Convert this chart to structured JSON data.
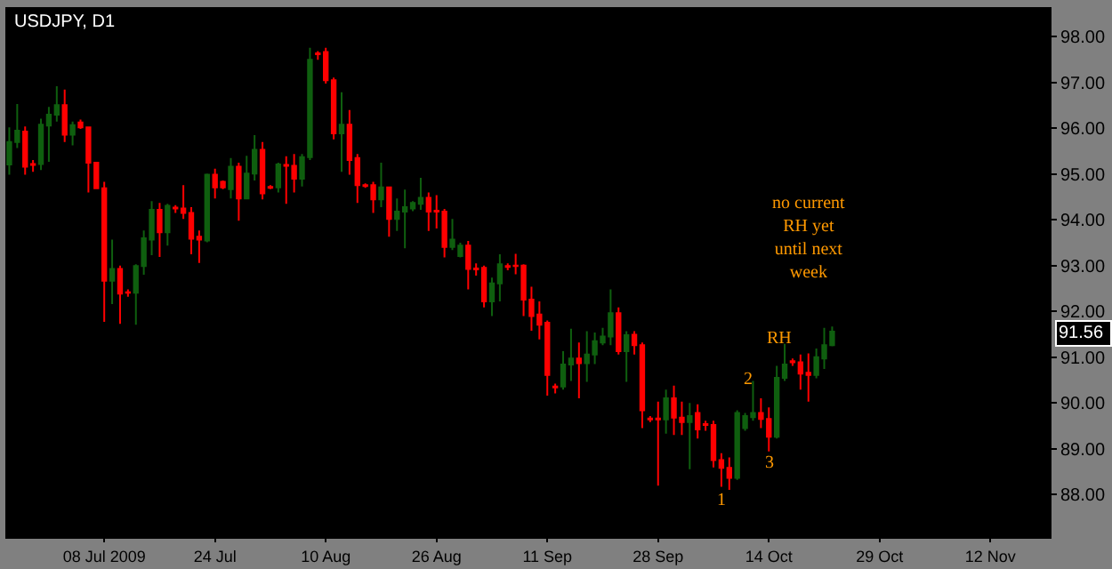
{
  "chart_data": {
    "type": "candlestick",
    "title": "USDJPY, D1",
    "categories": [
      null,
      null,
      null,
      null,
      null,
      null,
      null,
      null,
      null,
      null,
      null,
      null,
      "08 Jul 2009",
      null,
      null,
      null,
      null,
      null,
      null,
      null,
      null,
      null,
      null,
      null,
      null,
      null,
      "24 Jul",
      null,
      null,
      null,
      null,
      null,
      null,
      null,
      null,
      null,
      null,
      null,
      null,
      null,
      "10 Aug",
      null,
      null,
      null,
      null,
      null,
      null,
      null,
      null,
      null,
      null,
      null,
      null,
      null,
      "26 Aug",
      null,
      null,
      null,
      null,
      null,
      null,
      null,
      null,
      null,
      null,
      null,
      null,
      null,
      "11 Sep",
      null,
      null,
      null,
      null,
      null,
      null,
      null,
      null,
      null,
      null,
      null,
      null,
      null,
      "28 Sep",
      null,
      null,
      null,
      null,
      null,
      null,
      null,
      null,
      null,
      null,
      null,
      null,
      null,
      "14 Oct",
      null,
      null,
      null,
      null,
      null,
      null,
      null,
      null,
      null,
      null,
      null,
      null,
      null,
      "29 Oct",
      null,
      null,
      null,
      null,
      null,
      null,
      null,
      null,
      null,
      null,
      null,
      null,
      null,
      "12 Nov",
      null,
      null,
      null,
      null,
      null,
      null,
      null
    ],
    "ohlc": [
      [
        95.21,
        96.02,
        94.99,
        95.7
      ],
      [
        95.7,
        96.53,
        95.57,
        95.95
      ],
      [
        95.93,
        96.04,
        94.99,
        95.16
      ],
      [
        95.22,
        95.31,
        95.05,
        95.2
      ],
      [
        95.22,
        96.21,
        95.09,
        96.08
      ],
      [
        96.06,
        96.47,
        95.27,
        96.3
      ],
      [
        96.3,
        96.92,
        96.15,
        96.51
      ],
      [
        96.51,
        96.85,
        95.7,
        95.86
      ],
      [
        95.86,
        96.15,
        95.63,
        96.07
      ],
      [
        96.13,
        96.19,
        95.99,
        96.02
      ],
      [
        96.02,
        96.04,
        94.6,
        95.25
      ],
      [
        95.25,
        95.27,
        94.67,
        94.69
      ],
      [
        94.69,
        94.83,
        91.77,
        92.67
      ],
      [
        92.67,
        93.57,
        92.16,
        92.93
      ],
      [
        92.93,
        93.0,
        91.73,
        92.39
      ],
      [
        92.42,
        92.48,
        92.32,
        92.41
      ],
      [
        92.41,
        93.03,
        91.71,
        92.99
      ],
      [
        92.99,
        93.77,
        92.8,
        93.6
      ],
      [
        93.57,
        94.41,
        93.23,
        94.22
      ],
      [
        94.22,
        94.37,
        93.19,
        93.73
      ],
      [
        93.73,
        94.35,
        93.44,
        94.31
      ],
      [
        94.27,
        94.32,
        94.15,
        94.25
      ],
      [
        94.25,
        94.76,
        94.02,
        94.15
      ],
      [
        94.15,
        94.28,
        93.25,
        93.59
      ],
      [
        93.63,
        93.77,
        93.06,
        93.57
      ],
      [
        93.55,
        95.01,
        93.51,
        94.99
      ],
      [
        94.99,
        95.12,
        94.47,
        94.71
      ],
      [
        94.83,
        94.86,
        94.67,
        94.71
      ],
      [
        94.67,
        95.35,
        94.47,
        95.16
      ],
      [
        95.16,
        95.25,
        93.98,
        94.47
      ],
      [
        94.47,
        95.4,
        94.45,
        95.01
      ],
      [
        95.01,
        95.85,
        94.86,
        95.53
      ],
      [
        95.53,
        95.7,
        94.45,
        94.58
      ],
      [
        94.72,
        94.76,
        94.67,
        94.7
      ],
      [
        94.71,
        95.25,
        94.6,
        95.21
      ],
      [
        95.2,
        95.39,
        94.35,
        95.18
      ],
      [
        95.18,
        95.44,
        94.6,
        94.9
      ],
      [
        94.9,
        95.44,
        94.73,
        95.37
      ],
      [
        95.37,
        97.76,
        95.31,
        97.5
      ],
      [
        97.64,
        97.69,
        97.5,
        97.62
      ],
      [
        97.67,
        97.76,
        96.98,
        97.05
      ],
      [
        97.05,
        97.11,
        95.76,
        95.89
      ],
      [
        95.89,
        96.79,
        95.05,
        96.08
      ],
      [
        96.08,
        96.4,
        94.99,
        95.31
      ],
      [
        95.35,
        95.44,
        94.37,
        94.76
      ],
      [
        94.76,
        94.8,
        94.7,
        94.74
      ],
      [
        94.76,
        94.83,
        94.15,
        94.45
      ],
      [
        94.45,
        95.25,
        94.28,
        94.71
      ],
      [
        94.71,
        94.73,
        93.63,
        94.02
      ],
      [
        94.02,
        94.47,
        93.76,
        94.18
      ],
      [
        94.18,
        94.66,
        93.38,
        94.28
      ],
      [
        94.25,
        94.41,
        94.19,
        94.37
      ],
      [
        94.35,
        94.92,
        94.22,
        94.48
      ],
      [
        94.48,
        94.6,
        93.76,
        94.18
      ],
      [
        94.2,
        94.54,
        93.81,
        94.18
      ],
      [
        94.18,
        94.24,
        93.18,
        93.41
      ],
      [
        93.41,
        94.02,
        93.34,
        93.57
      ],
      [
        93.21,
        93.5,
        93.18,
        93.44
      ],
      [
        93.44,
        93.54,
        92.48,
        92.93
      ],
      [
        92.94,
        93.05,
        92.78,
        92.92
      ],
      [
        92.95,
        93.0,
        92.09,
        92.22
      ],
      [
        92.22,
        92.74,
        91.9,
        92.61
      ],
      [
        92.61,
        93.25,
        92.22,
        93.03
      ],
      [
        92.99,
        93.05,
        92.9,
        92.97
      ],
      [
        93.0,
        93.26,
        92.81,
        92.99
      ],
      [
        93.0,
        93.03,
        91.9,
        92.26
      ],
      [
        92.26,
        92.54,
        91.58,
        91.9
      ],
      [
        91.93,
        92.22,
        91.39,
        91.71
      ],
      [
        91.75,
        91.8,
        90.16,
        90.61
      ],
      [
        90.36,
        90.42,
        90.21,
        90.34
      ],
      [
        90.36,
        91.13,
        90.29,
        90.84
      ],
      [
        90.84,
        91.62,
        90.48,
        90.97
      ],
      [
        90.97,
        91.32,
        90.1,
        90.87
      ],
      [
        90.87,
        91.57,
        90.46,
        91.06
      ],
      [
        91.06,
        91.54,
        90.85,
        91.35
      ],
      [
        91.32,
        91.64,
        91.26,
        91.45
      ],
      [
        91.45,
        92.48,
        91.26,
        91.96
      ],
      [
        91.96,
        92.09,
        91.06,
        91.13
      ],
      [
        91.13,
        91.57,
        90.46,
        91.48
      ],
      [
        91.49,
        91.57,
        91.06,
        91.26
      ],
      [
        91.26,
        91.32,
        89.45,
        89.84
      ],
      [
        89.66,
        89.71,
        89.58,
        89.64
      ],
      [
        89.66,
        90.03,
        88.19,
        89.64
      ],
      [
        89.64,
        90.29,
        89.33,
        90.1
      ],
      [
        90.1,
        90.38,
        89.3,
        89.68
      ],
      [
        89.68,
        90.03,
        89.3,
        89.58
      ],
      [
        89.58,
        90.0,
        88.55,
        89.71
      ],
      [
        89.78,
        89.97,
        89.22,
        89.42
      ],
      [
        89.54,
        89.61,
        89.39,
        89.52
      ],
      [
        89.52,
        89.61,
        88.59,
        88.75
      ],
      [
        88.75,
        88.9,
        88.17,
        88.58
      ],
      [
        88.58,
        88.81,
        88.1,
        88.36
      ],
      [
        88.36,
        89.84,
        88.32,
        89.78
      ],
      [
        89.45,
        89.78,
        89.39,
        89.71
      ],
      [
        89.69,
        90.48,
        89.61,
        89.78
      ],
      [
        89.78,
        90.1,
        89.45,
        89.65
      ],
      [
        89.65,
        89.9,
        88.94,
        89.26
      ],
      [
        89.26,
        90.81,
        89.22,
        90.55
      ],
      [
        90.55,
        91.29,
        90.48,
        90.84
      ],
      [
        90.91,
        90.97,
        90.81,
        90.89
      ],
      [
        90.89,
        91.06,
        90.29,
        90.64
      ],
      [
        90.66,
        91.08,
        90.03,
        90.61
      ],
      [
        90.61,
        91.19,
        90.54,
        91.0
      ],
      [
        90.97,
        91.64,
        90.74,
        91.26
      ],
      [
        91.26,
        91.67,
        91.24,
        91.56
      ],
      null,
      null,
      null,
      null,
      null,
      null,
      null,
      null,
      null,
      null,
      null,
      null,
      null,
      null,
      null,
      null,
      null,
      null,
      null,
      null,
      null,
      null,
      null,
      null,
      null,
      null,
      null
    ],
    "colors": [
      "#0f5f0f",
      "#0f5f0f",
      "#ff0000",
      "#ff0000",
      "#0f5f0f",
      "#0f5f0f",
      "#0f5f0f",
      "#ff0000",
      "#0f5f0f",
      "#ff0000",
      "#ff0000",
      "#ff0000",
      "#ff0000",
      "#0f5f0f",
      "#ff0000",
      "#ff0000",
      "#0f5f0f",
      "#0f5f0f",
      "#0f5f0f",
      "#ff0000",
      "#0f5f0f",
      "#ff0000",
      "#ff0000",
      "#ff0000",
      "#ff0000",
      "#0f5f0f",
      "#ff0000",
      "#ff0000",
      "#0f5f0f",
      "#ff0000",
      "#0f5f0f",
      "#0f5f0f",
      "#ff0000",
      "#ff0000",
      "#0f5f0f",
      "#ff0000",
      "#ff0000",
      "#0f5f0f",
      "#0f5f0f",
      "#ff0000",
      "#ff0000",
      "#ff0000",
      "#0f5f0f",
      "#ff0000",
      "#ff0000",
      "#ff0000",
      "#ff0000",
      "#0f5f0f",
      "#ff0000",
      "#0f5f0f",
      "#0f5f0f",
      "#0f5f0f",
      "#0f5f0f",
      "#ff0000",
      "#ff0000",
      "#ff0000",
      "#0f5f0f",
      "#0f5f0f",
      "#ff0000",
      "#ff0000",
      "#ff0000",
      "#0f5f0f",
      "#0f5f0f",
      "#ff0000",
      "#ff0000",
      "#ff0000",
      "#ff0000",
      "#ff0000",
      "#ff0000",
      "#ff0000",
      "#0f5f0f",
      "#0f5f0f",
      "#ff0000",
      "#0f5f0f",
      "#0f5f0f",
      "#0f5f0f",
      "#0f5f0f",
      "#ff0000",
      "#0f5f0f",
      "#ff0000",
      "#ff0000",
      "#ff0000",
      "#ff0000",
      "#0f5f0f",
      "#ff0000",
      "#ff0000",
      "#0f5f0f",
      "#ff0000",
      "#ff0000",
      "#ff0000",
      "#ff0000",
      "#ff0000",
      "#0f5f0f",
      "#0f5f0f",
      "#0f5f0f",
      "#ff0000",
      "#ff0000",
      "#0f5f0f",
      "#0f5f0f",
      "#ff0000",
      "#ff0000",
      "#ff0000",
      "#0f5f0f",
      "#0f5f0f",
      "#0f5f0f",
      null,
      null,
      null,
      null,
      null,
      null,
      null,
      null,
      null,
      null,
      null,
      null,
      null,
      null,
      null,
      null,
      null,
      null,
      null,
      null,
      null,
      null,
      null,
      null,
      null,
      null,
      null
    ],
    "ylim": [
      87.07,
      98.65
    ],
    "yticks": [
      {
        "value": 88,
        "label": "88.00"
      },
      {
        "value": 89,
        "label": "89.00"
      },
      {
        "value": 90,
        "label": "90.00"
      },
      {
        "value": 91,
        "label": "91.00"
      },
      {
        "value": 92,
        "label": "92.00"
      },
      {
        "value": 93,
        "label": "93.00"
      },
      {
        "value": 94,
        "label": "94.00"
      },
      {
        "value": 95,
        "label": "95.00"
      },
      {
        "value": 96,
        "label": "96.00"
      },
      {
        "value": 97,
        "label": "97.00"
      },
      {
        "value": 98,
        "label": "98.00"
      }
    ],
    "annotations": [
      "no current\nRH yet\nuntil next\nweek",
      "RH",
      "2",
      "3",
      "1",
      "91.56"
    ],
    "grid": false
  }
}
